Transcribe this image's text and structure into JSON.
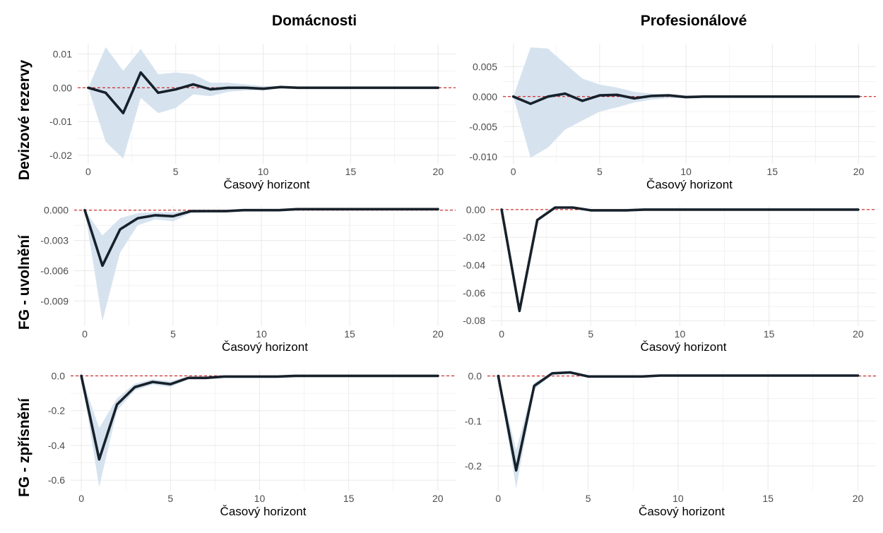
{
  "column_titles": [
    "Domácnosti",
    "Profesionálové"
  ],
  "row_titles": [
    "Devizové rezervy",
    "FG - uvolnění",
    "FG - zpřísnění"
  ],
  "colors": {
    "line": "#17212b",
    "band": "#d6e3ef",
    "zero_line": "#cc0000",
    "grid": "#ebebeb",
    "tick_text": "#4d4d4d"
  },
  "chart_data": [
    {
      "type": "line",
      "row": "Devizové rezervy",
      "column": "Domácnosti",
      "xlabel": "Časový horizont",
      "ylabel": "",
      "grid": true,
      "xlim": [
        -0.6,
        21
      ],
      "ylim": [
        -0.0225,
        0.013
      ],
      "xticks": [
        0,
        5,
        10,
        15,
        20
      ],
      "xtick_labels": [
        "0",
        "5",
        "10",
        "15",
        "20"
      ],
      "yticks": [
        0.01,
        0.0,
        -0.01,
        -0.02
      ],
      "ytick_labels": [
        "0.01",
        "0.00",
        "-0.01",
        "-0.02"
      ],
      "x": [
        0,
        1,
        2,
        3,
        4,
        5,
        6,
        7,
        8,
        9,
        10,
        11,
        12,
        13,
        14,
        15,
        16,
        17,
        18,
        19,
        20
      ],
      "series": [
        {
          "role": "irf",
          "values": [
            0,
            -0.0015,
            -0.0075,
            0.0045,
            -0.0015,
            -0.0005,
            0.001,
            -0.0005,
            0,
            0,
            -0.0003,
            0.0002,
            0,
            0,
            0,
            0,
            0,
            0,
            0,
            0,
            0
          ]
        },
        {
          "role": "upper",
          "values": [
            0,
            0.012,
            0.005,
            0.0115,
            0.004,
            0.0045,
            0.004,
            0.0015,
            0.0015,
            0.001,
            0.0005,
            0.0005,
            0.0003,
            0.0002,
            0.0001,
            0.0001,
            0,
            0,
            0,
            0,
            0
          ]
        },
        {
          "role": "lower",
          "values": [
            0,
            -0.016,
            -0.021,
            -0.003,
            -0.0075,
            -0.006,
            -0.002,
            -0.0025,
            -0.0012,
            -0.0008,
            -0.0008,
            -0.0002,
            -0.0002,
            -0.0001,
            -0.0001,
            0,
            0,
            0,
            0,
            0,
            0
          ]
        }
      ]
    },
    {
      "type": "line",
      "row": "Devizové rezervy",
      "column": "Profesionálové",
      "xlabel": "Časový horizont",
      "ylabel": "",
      "grid": true,
      "xlim": [
        -0.6,
        21
      ],
      "ylim": [
        -0.0112,
        0.0088
      ],
      "xticks": [
        0,
        5,
        10,
        15,
        20
      ],
      "xtick_labels": [
        "0",
        "5",
        "10",
        "15",
        "20"
      ],
      "yticks": [
        0.005,
        0.0,
        -0.005,
        -0.01
      ],
      "ytick_labels": [
        "0.005",
        "0.000",
        "-0.005",
        "-0.010"
      ],
      "x": [
        0,
        1,
        2,
        3,
        4,
        5,
        6,
        7,
        8,
        9,
        10,
        11,
        12,
        13,
        14,
        15,
        16,
        17,
        18,
        19,
        20
      ],
      "series": [
        {
          "role": "irf",
          "values": [
            0,
            -0.0012,
            0,
            0.0005,
            -0.0007,
            0.0002,
            0.0003,
            -0.0003,
            0.0001,
            0.0002,
            -0.0001,
            0,
            0,
            0,
            0,
            0,
            0,
            0,
            0,
            0,
            0
          ]
        },
        {
          "role": "upper",
          "values": [
            0,
            0.0082,
            0.008,
            0.0055,
            0.003,
            0.002,
            0.0015,
            0.0008,
            0.0005,
            0.0004,
            0.0002,
            0.0001,
            0,
            0,
            0,
            0,
            0,
            0,
            0,
            0,
            0
          ]
        },
        {
          "role": "lower",
          "values": [
            0,
            -0.0102,
            -0.0085,
            -0.0055,
            -0.004,
            -0.0025,
            -0.0018,
            -0.001,
            -0.0005,
            -0.0003,
            -0.0002,
            -0.0001,
            0,
            0,
            0,
            0,
            0,
            0,
            0,
            0,
            0
          ]
        }
      ]
    },
    {
      "type": "line",
      "row": "FG - uvolnění",
      "column": "Domácnosti",
      "xlabel": "Časový horizont",
      "ylabel": "",
      "grid": true,
      "xlim": [
        -0.6,
        21
      ],
      "ylim": [
        -0.0115,
        0.0004
      ],
      "xticks": [
        0,
        5,
        10,
        15,
        20
      ],
      "xtick_labels": [
        "0",
        "5",
        "10",
        "15",
        "20"
      ],
      "yticks": [
        0.0,
        -0.003,
        -0.006,
        -0.009
      ],
      "ytick_labels": [
        "0.000",
        "-0.003",
        "-0.006",
        "-0.009"
      ],
      "x": [
        0,
        1,
        2,
        3,
        4,
        5,
        6,
        7,
        8,
        9,
        10,
        11,
        12,
        13,
        14,
        15,
        16,
        17,
        18,
        19,
        20
      ],
      "series": [
        {
          "role": "irf",
          "values": [
            0,
            -0.0055,
            -0.0019,
            -0.0008,
            -0.0005,
            -0.0006,
            -0.0001,
            -0.0001,
            -0.0001,
            0,
            0,
            0,
            0.0001,
            0.0001,
            0.0001,
            0.0001,
            0.0001,
            0.0001,
            0.0001,
            0.0001,
            0.0001
          ]
        },
        {
          "role": "upper",
          "values": [
            0,
            -0.0025,
            -0.0008,
            -0.0003,
            -0.0002,
            -0.0002,
            0,
            0,
            0,
            0,
            0,
            0.0001,
            0.0001,
            0.0001,
            0.0001,
            0.0001,
            0.0001,
            0.0001,
            0.0001,
            0.0001,
            0.0001
          ]
        },
        {
          "role": "lower",
          "values": [
            0,
            -0.011,
            -0.0042,
            -0.0015,
            -0.0009,
            -0.0011,
            -0.0003,
            -0.0002,
            -0.0002,
            -0.0001,
            -0.0001,
            -0.0001,
            0,
            0,
            0,
            0,
            0,
            0,
            0,
            0,
            0
          ]
        }
      ]
    },
    {
      "type": "line",
      "row": "FG - uvolnění",
      "column": "Profesionálové",
      "xlabel": "Časový horizont",
      "ylabel": "",
      "grid": true,
      "xlim": [
        -0.6,
        21
      ],
      "ylim": [
        -0.084,
        0.0025
      ],
      "xticks": [
        0,
        5,
        10,
        15,
        20
      ],
      "xtick_labels": [
        "0",
        "5",
        "10",
        "15",
        "20"
      ],
      "yticks": [
        0.0,
        -0.02,
        -0.04,
        -0.06,
        -0.08
      ],
      "ytick_labels": [
        "0.00",
        "-0.02",
        "-0.04",
        "-0.06",
        "-0.08"
      ],
      "x": [
        0,
        1,
        2,
        3,
        4,
        5,
        6,
        7,
        8,
        9,
        10,
        11,
        12,
        13,
        14,
        15,
        16,
        17,
        18,
        19,
        20
      ],
      "series": [
        {
          "role": "irf",
          "values": [
            0,
            -0.073,
            -0.0075,
            0.0015,
            0.0015,
            -0.0005,
            -0.0005,
            -0.0005,
            0,
            0,
            0,
            0,
            0,
            0,
            0,
            0,
            0,
            0,
            0,
            0,
            0
          ]
        },
        {
          "role": "upper",
          "values": [
            0,
            -0.071,
            -0.0065,
            0.002,
            0.002,
            0,
            0,
            0,
            0,
            0,
            0,
            0,
            0,
            0,
            0,
            0,
            0,
            0,
            0,
            0,
            0
          ]
        },
        {
          "role": "lower",
          "values": [
            0,
            -0.075,
            -0.0085,
            0.001,
            0.001,
            -0.001,
            -0.001,
            -0.001,
            0,
            0,
            0,
            0,
            0,
            0,
            0,
            0,
            0,
            0,
            0,
            0,
            0
          ]
        }
      ]
    },
    {
      "type": "line",
      "row": "FG - zpřísnění",
      "column": "Domácnosti",
      "xlabel": "Časový horizont",
      "ylabel": "",
      "grid": true,
      "xlim": [
        -0.6,
        21
      ],
      "ylim": [
        -0.66,
        0.03
      ],
      "xticks": [
        0,
        5,
        10,
        15,
        20
      ],
      "xtick_labels": [
        "0",
        "5",
        "10",
        "15",
        "20"
      ],
      "yticks": [
        0.0,
        -0.2,
        -0.4,
        -0.6
      ],
      "ytick_labels": [
        "0.0",
        "-0.2",
        "-0.4",
        "-0.6"
      ],
      "x": [
        0,
        1,
        2,
        3,
        4,
        5,
        6,
        7,
        8,
        9,
        10,
        11,
        12,
        13,
        14,
        15,
        16,
        17,
        18,
        19,
        20
      ],
      "series": [
        {
          "role": "irf",
          "values": [
            0,
            -0.48,
            -0.165,
            -0.065,
            -0.035,
            -0.048,
            -0.012,
            -0.012,
            -0.004,
            -0.004,
            -0.004,
            -0.004,
            0,
            0,
            0,
            0,
            0,
            0,
            0,
            0,
            0
          ]
        },
        {
          "role": "upper",
          "values": [
            0,
            -0.3,
            -0.13,
            -0.045,
            -0.02,
            -0.03,
            -0.005,
            -0.005,
            0,
            0,
            0,
            0,
            0,
            0,
            0,
            0,
            0,
            0,
            0,
            0,
            0
          ]
        },
        {
          "role": "lower",
          "values": [
            0,
            -0.64,
            -0.2,
            -0.085,
            -0.05,
            -0.065,
            -0.02,
            -0.02,
            -0.008,
            -0.008,
            -0.008,
            -0.008,
            0,
            0,
            0,
            0,
            0,
            0,
            0,
            0,
            0
          ]
        }
      ]
    },
    {
      "type": "line",
      "row": "FG - zpřísnění",
      "column": "Profesionálové",
      "xlabel": "Časový horizont",
      "ylabel": "",
      "grid": true,
      "xlim": [
        -0.6,
        21
      ],
      "ylim": [
        -0.255,
        0.012
      ],
      "xticks": [
        0,
        5,
        10,
        15,
        20
      ],
      "xtick_labels": [
        "0",
        "5",
        "10",
        "15",
        "20"
      ],
      "yticks": [
        0.0,
        -0.1,
        -0.2
      ],
      "ytick_labels": [
        "0.0",
        "-0.1",
        "-0.2"
      ],
      "x": [
        0,
        1,
        2,
        3,
        4,
        5,
        6,
        7,
        8,
        9,
        10,
        11,
        12,
        13,
        14,
        15,
        16,
        17,
        18,
        19,
        20
      ],
      "series": [
        {
          "role": "irf",
          "values": [
            0,
            -0.21,
            -0.022,
            0.006,
            0.008,
            -0.001,
            -0.001,
            -0.001,
            -0.001,
            0.001,
            0.001,
            0.001,
            0.001,
            0.001,
            0.001,
            0.001,
            0.001,
            0.001,
            0.001,
            0.001,
            0.001
          ]
        },
        {
          "role": "upper",
          "values": [
            0,
            -0.165,
            -0.015,
            0.009,
            0.011,
            0.001,
            0,
            0,
            0,
            0.002,
            0.002,
            0.002,
            0.002,
            0.002,
            0.002,
            0.002,
            0.002,
            0.002,
            0.002,
            0.002,
            0.002
          ]
        },
        {
          "role": "lower",
          "values": [
            0,
            -0.25,
            -0.03,
            0.003,
            0.004,
            -0.003,
            -0.003,
            -0.003,
            -0.003,
            0,
            0,
            0,
            0,
            0,
            0,
            0,
            0,
            0,
            0,
            0,
            0
          ]
        }
      ]
    }
  ]
}
